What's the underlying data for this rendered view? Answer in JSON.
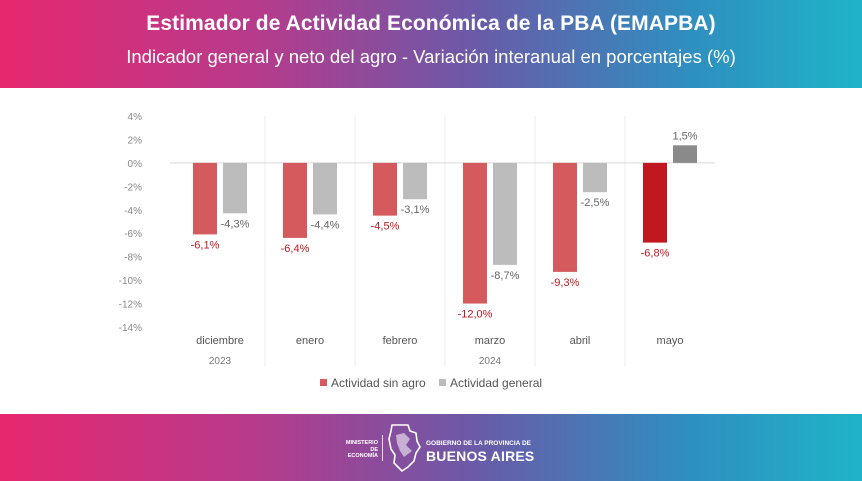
{
  "header": {
    "title": "Estimador de Actividad Económica de la PBA (EMAPBA)",
    "subtitle": "Indicador general y neto del agro - Variación interanual en porcentajes (%)"
  },
  "chart_data": {
    "type": "bar",
    "categories": [
      "diciembre",
      "enero",
      "febrero",
      "marzo",
      "abril",
      "mayo"
    ],
    "year_groups": [
      {
        "label": "2023",
        "categories": [
          "diciembre"
        ]
      },
      {
        "label": "2024",
        "categories": [
          "enero",
          "febrero",
          "marzo",
          "abril",
          "mayo"
        ]
      }
    ],
    "series": [
      {
        "name": "Actividad sin agro",
        "color": "#d45a5e",
        "highlight_color": "#c0181e",
        "values": [
          -6.1,
          -6.4,
          -4.5,
          -12.0,
          -9.3,
          -6.8
        ],
        "labels": [
          "-6,1%",
          "-6,4%",
          "-4,5%",
          "-12,0%",
          "-9,3%",
          "-6,8%"
        ]
      },
      {
        "name": "Actividad general",
        "color": "#bcbcbc",
        "highlight_color": "#8a8a8a",
        "values": [
          -4.3,
          -4.4,
          -3.1,
          -8.7,
          -2.5,
          1.5
        ],
        "labels": [
          "-4,3%",
          "-4,4%",
          "-3,1%",
          "-8,7%",
          "-2,5%",
          "1,5%"
        ]
      }
    ],
    "highlight_category": "mayo",
    "yticks": [
      4,
      2,
      0,
      -2,
      -4,
      -6,
      -8,
      -10,
      -12,
      -14
    ],
    "ytick_labels": [
      "4%",
      "2%",
      "0%",
      "-2%",
      "-4%",
      "-6%",
      "-8%",
      "-10%",
      "-12%",
      "-14%"
    ],
    "ylim": [
      -14,
      4
    ],
    "legend_position": "bottom",
    "grid": false
  },
  "footer": {
    "ministry": [
      "MINISTERIO DE",
      "ECONOMÍA"
    ],
    "gov_top": "GOBIERNO DE LA PROVINCIA DE",
    "gov_main": "BUENOS AIRES"
  }
}
